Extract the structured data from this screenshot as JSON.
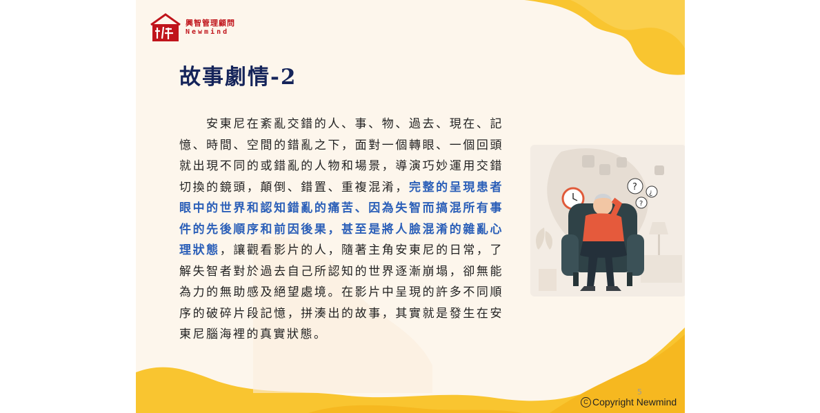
{
  "logo": {
    "mark_icon": "house-xu-logo-icon",
    "name_cn": "興智管理顧問",
    "name_en": "Newmind",
    "color": "#c0141b"
  },
  "slide": {
    "title": "故事劇情-2",
    "paragraph": {
      "part1": "安東尼在紊亂交錯的人、事、物、過去、現在、記憶、時間、空間的錯亂之下，面對一個轉眼、一個回頭就出現不同的或錯亂的人物和場景，導演巧妙運用交錯切換的鏡頭，顛倒、錯置、重複混淆，",
      "highlight": "完整的呈現患者眼中的世界和認知錯亂的痛苦、因為失智而搞混所有事件的先後順序和前因後果，甚至是將人臉混淆的雜亂心理狀態",
      "part2": "，讓觀看影片的人，隨著主角安東尼的日常，了解失智者對於過去自己所認知的世界逐漸崩塌，卻無能為力的無助感及絕望處境。在影片中呈現的許多不同順序的破碎片段記憶，拼湊出的故事，其實就是發生在安東尼腦海裡的真實狀態。"
    },
    "illustration_icon": "confused-elderly-man-armchair-icon",
    "page_number": "5",
    "copyright_symbol": "C",
    "copyright": "Copyright Newmind"
  },
  "colors": {
    "background": "#fdf6ec",
    "title": "#15245a",
    "highlight": "#2b5fb8",
    "accent_yellow": "#f9c530"
  }
}
